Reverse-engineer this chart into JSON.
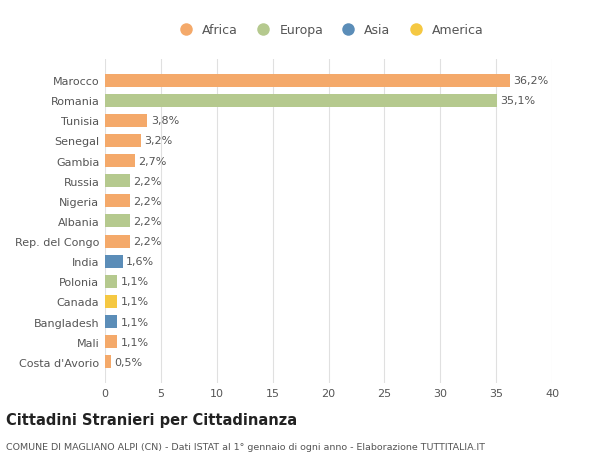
{
  "countries": [
    "Marocco",
    "Romania",
    "Tunisia",
    "Senegal",
    "Gambia",
    "Russia",
    "Nigeria",
    "Albania",
    "Rep. del Congo",
    "India",
    "Polonia",
    "Canada",
    "Bangladesh",
    "Mali",
    "Costa d'Avorio"
  ],
  "values": [
    36.2,
    35.1,
    3.8,
    3.2,
    2.7,
    2.2,
    2.2,
    2.2,
    2.2,
    1.6,
    1.1,
    1.1,
    1.1,
    1.1,
    0.5
  ],
  "labels": [
    "36,2%",
    "35,1%",
    "3,8%",
    "3,2%",
    "2,7%",
    "2,2%",
    "2,2%",
    "2,2%",
    "2,2%",
    "1,6%",
    "1,1%",
    "1,1%",
    "1,1%",
    "1,1%",
    "0,5%"
  ],
  "continents": [
    "Africa",
    "Europa",
    "Africa",
    "Africa",
    "Africa",
    "Europa",
    "Africa",
    "Europa",
    "Africa",
    "Asia",
    "Europa",
    "America",
    "Asia",
    "Africa",
    "Africa"
  ],
  "colors": {
    "Africa": "#F4A96A",
    "Europa": "#B5C98E",
    "Asia": "#5B8DB8",
    "America": "#F5C842"
  },
  "title": "Cittadini Stranieri per Cittadinanza",
  "subtitle": "COMUNE DI MAGLIANO ALPI (CN) - Dati ISTAT al 1° gennaio di ogni anno - Elaborazione TUTTITALIA.IT",
  "xlim": [
    0,
    40
  ],
  "xticks": [
    0,
    5,
    10,
    15,
    20,
    25,
    30,
    35,
    40
  ],
  "bg_color": "#ffffff",
  "grid_color": "#e0e0e0",
  "bar_height": 0.65,
  "label_fontsize": 8,
  "ytick_fontsize": 8,
  "xtick_fontsize": 8
}
